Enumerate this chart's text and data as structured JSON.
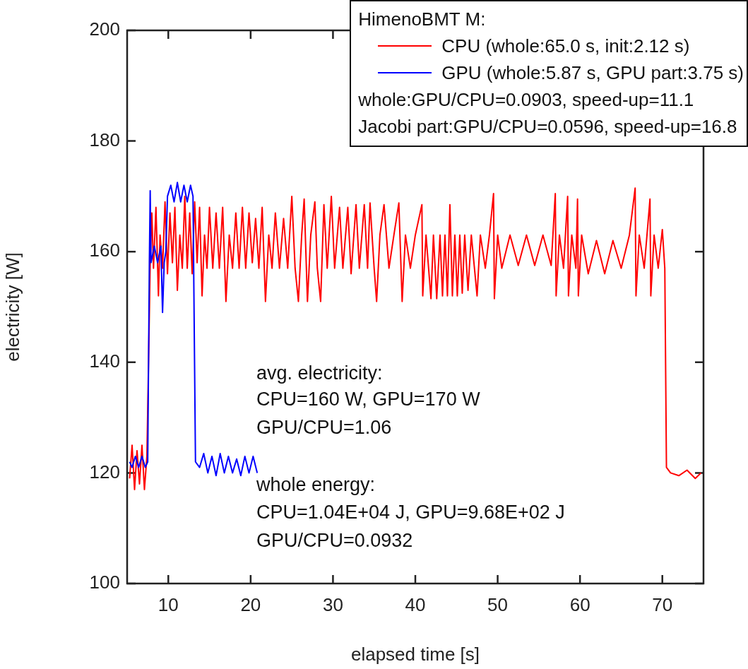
{
  "chart_data": {
    "type": "line",
    "xlabel": "elapsed time [s]",
    "ylabel": "electricity [W]",
    "legend_title": "HimenoBMT M:",
    "legend": "top right",
    "grid": false,
    "marker": "none",
    "line_style": "solid",
    "xlim": [
      5,
      75
    ],
    "xticks": [
      10,
      20,
      30,
      40,
      50,
      60,
      70
    ],
    "ylim": [
      100,
      200
    ],
    "yticks": [
      100,
      120,
      140,
      160,
      180,
      200
    ],
    "annotations": [
      "whole:GPU/CPU=0.0903, speed-up=11.1",
      "Jacobi part:GPU/CPU=0.0596, speed-up=16.8",
      "avg. electricity:",
      "CPU=160 W, GPU=170 W",
      "GPU/CPU=1.06",
      "whole energy:",
      "CPU=1.04E+04 J, GPU=9.68E+02 J",
      "GPU/CPU=0.0932"
    ],
    "series": [
      {
        "name": "CPU (whole:65.0 s, init:2.12 s)",
        "color": "#ff0000",
        "x": [
          5.3,
          5.6,
          5.9,
          6.2,
          6.5,
          6.8,
          7.1,
          7.4,
          7.6,
          7.8,
          8.0,
          8.2,
          8.5,
          8.8,
          9.0,
          9.3,
          9.6,
          9.9,
          10.2,
          10.5,
          10.8,
          11.1,
          11.4,
          11.7,
          12.0,
          12.3,
          12.6,
          12.9,
          13.2,
          13.5,
          13.8,
          14.1,
          14.4,
          14.7,
          15.0,
          15.4,
          15.8,
          16.2,
          16.6,
          17.0,
          17.4,
          17.8,
          18.2,
          18.6,
          19.0,
          19.4,
          19.8,
          20.2,
          20.6,
          21.0,
          21.4,
          21.8,
          22.2,
          22.6,
          23.0,
          23.5,
          24.0,
          24.5,
          25.0,
          25.4,
          25.8,
          26.2,
          26.5,
          26.9,
          27.3,
          27.8,
          28.1,
          28.5,
          28.9,
          29.3,
          29.8,
          30.2,
          30.8,
          31.2,
          31.8,
          32.2,
          32.8,
          33.2,
          33.8,
          34.2,
          34.5,
          35.0,
          35.3,
          35.7,
          36.2,
          36.8,
          37.4,
          38.0,
          38.4,
          38.8,
          39.4,
          40.0,
          40.8,
          40.9,
          41.3,
          41.9,
          42.2,
          42.6,
          43.0,
          43.3,
          43.6,
          43.9,
          44.2,
          44.5,
          44.8,
          45.1,
          45.4,
          45.7,
          46.0,
          46.4,
          46.8,
          47.5,
          47.9,
          48.5,
          49.0,
          49.5,
          49.6,
          50.0,
          50.5,
          51.5,
          52.5,
          53.5,
          54.5,
          55.5,
          56.5,
          57.0,
          57.1,
          57.5,
          58.0,
          58.5,
          58.6,
          59.0,
          59.5,
          59.7,
          59.8,
          60.2,
          61.0,
          62.0,
          63.0,
          64.0,
          65.0,
          66.0,
          66.7,
          66.8,
          67.2,
          67.8,
          68.5,
          68.6,
          69.0,
          69.5,
          70.0,
          70.3,
          70.5,
          71.0,
          72.0,
          73.0,
          74.0,
          74.7
        ],
        "values": [
          119,
          125,
          117,
          124,
          118,
          125,
          117,
          123,
          140,
          158,
          167,
          157,
          168,
          152,
          163,
          157,
          169,
          156,
          167,
          158,
          168,
          153,
          163,
          157,
          170,
          157,
          167,
          156,
          169,
          158,
          168,
          152,
          163,
          157,
          168,
          157,
          167,
          157,
          168,
          151,
          163,
          157,
          167,
          157,
          168,
          157,
          167,
          158,
          166,
          157,
          168,
          151,
          163,
          157,
          167,
          157,
          166,
          157,
          170,
          157,
          151,
          163,
          169.5,
          151,
          163,
          169,
          157,
          151,
          168.5,
          157,
          170,
          157,
          168,
          157,
          168,
          156,
          168.5,
          157,
          168.5,
          157,
          168.8,
          157,
          151,
          163,
          168.5,
          157,
          163,
          168.8,
          151,
          163,
          157,
          163,
          168.5,
          152,
          163,
          151.5,
          163,
          151.5,
          163,
          152,
          163,
          152,
          168.5,
          152,
          163,
          152,
          163,
          152.5,
          163,
          153,
          163,
          152,
          163,
          157,
          163,
          170.5,
          151.5,
          163,
          157,
          163,
          157.5,
          163,
          157.5,
          163,
          157.5,
          170.5,
          152,
          163,
          157,
          170,
          152,
          163,
          157,
          169.5,
          152,
          163,
          156,
          162,
          156,
          162,
          157,
          163,
          171.5,
          152,
          163,
          157,
          169.5,
          152,
          163,
          157,
          164,
          157,
          121,
          120,
          119.5,
          120.5,
          119,
          120
        ]
      },
      {
        "name": "GPU (whole:5.87 s, GPU part:3.75 s)",
        "color": "#0000ff",
        "x": [
          5.3,
          5.6,
          6.0,
          6.4,
          6.8,
          7.2,
          7.5,
          7.7,
          7.8,
          7.9,
          8.3,
          8.7,
          9.1,
          9.3,
          9.5,
          9.7,
          9.9,
          10.3,
          10.7,
          11.1,
          11.5,
          11.9,
          12.3,
          12.7,
          13.0,
          13.3,
          13.8,
          14.3,
          14.8,
          15.3,
          15.8,
          16.3,
          16.8,
          17.3,
          17.8,
          18.3,
          18.8,
          19.3,
          19.8,
          20.3,
          20.8
        ],
        "values": [
          122,
          121,
          123,
          121,
          123,
          121,
          122,
          158,
          171,
          158,
          161,
          158,
          161,
          149,
          158,
          160,
          170,
          172,
          169,
          172.5,
          169,
          172,
          169,
          172,
          170,
          122,
          121,
          123.5,
          120,
          123,
          119.5,
          123.5,
          120,
          123,
          120,
          122.5,
          119.5,
          123,
          120,
          123,
          120
        ]
      }
    ]
  }
}
